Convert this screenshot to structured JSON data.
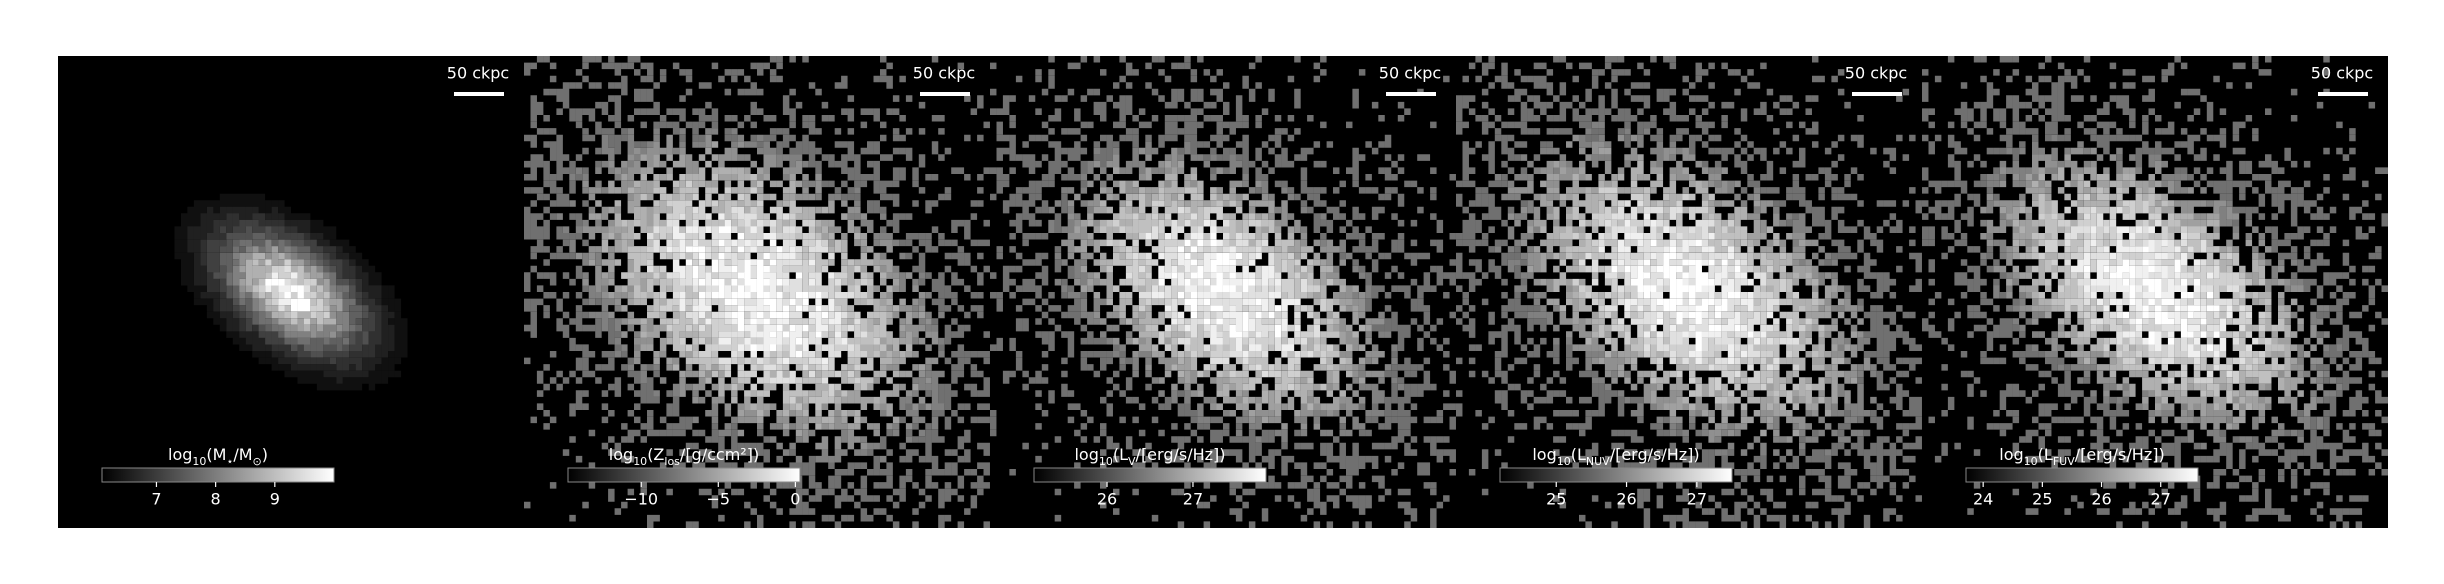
{
  "chart_data": [
    {
      "type": "image",
      "scale_label": "50 ckpc",
      "colorbar_label": [
        "log",
        "10",
        "(M",
        "⋆",
        "/M",
        "⊙",
        ")"
      ],
      "clim": [
        6.08,
        10.0
      ],
      "cticks": [
        7,
        8,
        9
      ]
    },
    {
      "type": "image",
      "scale_label": "50 ckpc",
      "colorbar_label": [
        "log",
        "10",
        "(Z",
        "los",
        "/[g/ccm²])"
      ],
      "clim": [
        -14.75,
        0.3
      ],
      "cticks": [
        {
          "value": -10,
          "label": "−10"
        },
        {
          "value": -5,
          "label": "−5"
        },
        0
      ]
    },
    {
      "type": "image",
      "scale_label": "50 ckpc",
      "colorbar_label": [
        "log",
        "10",
        "(L",
        "V",
        "/[erg/s/Hz])"
      ],
      "clim": [
        25.15,
        27.85
      ],
      "cticks": [
        26,
        27
      ]
    },
    {
      "type": "image",
      "scale_label": "50 ckpc",
      "colorbar_label": [
        "log",
        "10",
        "(L",
        "NUV",
        "/[erg/s/Hz])"
      ],
      "clim": [
        24.2,
        27.5
      ],
      "cticks": [
        25,
        26,
        27
      ]
    },
    {
      "type": "image",
      "scale_label": "50 ckpc",
      "colorbar_label": [
        "log",
        "10",
        "(L",
        "FUV",
        "/[erg/s/Hz])"
      ],
      "clim": [
        23.71,
        27.63
      ],
      "cticks": [
        24,
        25,
        26,
        27
      ]
    }
  ]
}
